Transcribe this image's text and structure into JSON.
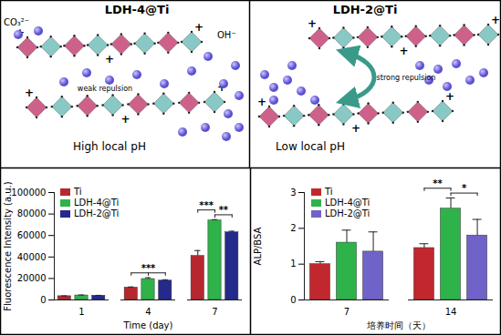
{
  "diagram": {
    "panels": [
      {
        "title": "LDH-4@Ti",
        "ion_labels": [
          "CO₃²⁻",
          "OH⁻"
        ],
        "charge": "+",
        "arrow_label": "weak repulsion",
        "caption": "High local pH"
      },
      {
        "title": "LDH-2@Ti",
        "charge": "+",
        "arrow_label": "strong repulsion",
        "caption": "Low local pH"
      }
    ]
  },
  "chart_data": [
    {
      "type": "bar",
      "x_label": "Time (day)",
      "y_label": "Fluorescence Intensity (a.u.)",
      "categories": [
        "1",
        "4",
        "7"
      ],
      "series": [
        {
          "name": "Ti",
          "color": "#b5282e",
          "values": [
            3500,
            11500,
            41000
          ],
          "errors": [
            300,
            600,
            5000
          ]
        },
        {
          "name": "LDH-4@Ti",
          "color": "#2fb24a",
          "values": [
            4200,
            19500,
            74000
          ],
          "errors": [
            400,
            1200,
            800
          ]
        },
        {
          "name": "LDH-2@Ti",
          "color": "#232a8c",
          "values": [
            4000,
            18000,
            63000
          ],
          "errors": [
            300,
            800,
            1000
          ]
        }
      ],
      "ylim": [
        0,
        100000
      ],
      "yticks": [
        0,
        20000,
        40000,
        60000,
        80000,
        100000
      ],
      "legend": "top-left",
      "annotations": [
        {
          "text": "***",
          "category": "4",
          "series": [
            "Ti",
            "LDH-4@Ti",
            "LDH-2@Ti"
          ]
        },
        {
          "text": "**",
          "category": "7",
          "series": [
            "LDH-4@Ti",
            "LDH-2@Ti"
          ]
        },
        {
          "text": "***",
          "category": "7",
          "series": [
            "Ti",
            "LDH-4@Ti"
          ]
        }
      ]
    },
    {
      "type": "bar",
      "x_label": "培养时间（天）",
      "y_label": "ALP/BSA",
      "categories": [
        "7",
        "14"
      ],
      "series": [
        {
          "name": "Ti",
          "color": "#c0282e",
          "values": [
            1.0,
            1.45
          ],
          "errors": [
            0.07,
            0.12
          ]
        },
        {
          "name": "LDH-4@Ti",
          "color": "#2db34a",
          "values": [
            1.6,
            2.55
          ],
          "errors": [
            0.35,
            0.3
          ]
        },
        {
          "name": "LDH-2@Ti",
          "color": "#6f63c9",
          "values": [
            1.35,
            1.8
          ],
          "errors": [
            0.55,
            0.45
          ]
        }
      ],
      "ylim": [
        0,
        3
      ],
      "yticks": [
        0,
        1,
        2,
        3
      ],
      "legend": "top-left",
      "annotations": [
        {
          "text": "*",
          "category": "14",
          "series": [
            "LDH-4@Ti",
            "LDH-2@Ti"
          ]
        },
        {
          "text": "**",
          "category": "14",
          "series": [
            "Ti",
            "LDH-4@Ti"
          ]
        }
      ]
    }
  ]
}
